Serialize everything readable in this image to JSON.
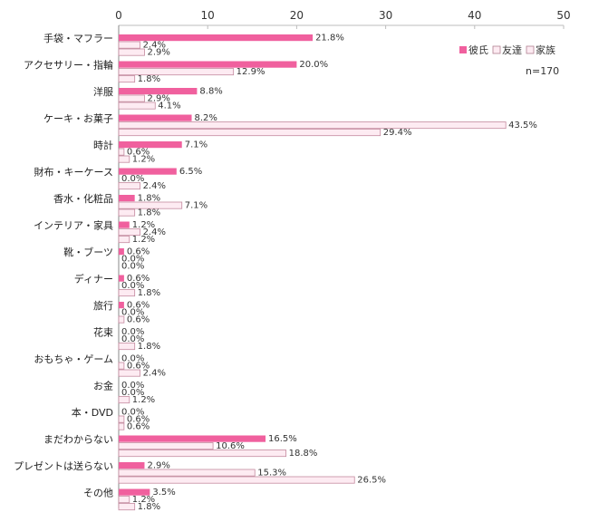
{
  "chart_data": {
    "type": "bar",
    "orientation": "horizontal",
    "categories": [
      "手袋・マフラー",
      "アクセサリー・指輪",
      "洋服",
      "ケーキ・お菓子",
      "時計",
      "財布・キーケース",
      "香水・化粧品",
      "インテリア・家具",
      "靴・ブーツ",
      "ディナー",
      "旅行",
      "花束",
      "おもちゃ・ゲーム",
      "お金",
      "本・DVD",
      "まだわからない",
      "プレゼントは送らない",
      "その他"
    ],
    "series": [
      {
        "name": "彼氏",
        "color": "#f0609e",
        "values": [
          21.8,
          20.0,
          8.8,
          8.2,
          7.1,
          6.5,
          1.8,
          1.2,
          0.6,
          0.6,
          0.6,
          0.0,
          0.0,
          0.0,
          0.0,
          16.5,
          2.9,
          3.5
        ]
      },
      {
        "name": "友達",
        "color": "#fdebf2",
        "values": [
          2.4,
          12.9,
          2.9,
          43.5,
          0.6,
          0.0,
          7.1,
          2.4,
          0.0,
          0.0,
          0.0,
          0.0,
          0.6,
          0.0,
          0.6,
          10.6,
          15.3,
          1.2
        ]
      },
      {
        "name": "家族",
        "color": "#fdebf2",
        "values": [
          2.9,
          1.8,
          4.1,
          29.4,
          1.2,
          2.4,
          1.8,
          1.2,
          0.0,
          1.8,
          0.6,
          1.8,
          2.4,
          1.2,
          0.6,
          18.8,
          26.5,
          1.8
        ]
      }
    ],
    "xlim": [
      0,
      50
    ],
    "xticks": [
      "0",
      "10",
      "20",
      "30",
      "40",
      "50"
    ],
    "label_suffix": "%",
    "legend_position": "top-right",
    "note": "n=170",
    "grid": false
  }
}
